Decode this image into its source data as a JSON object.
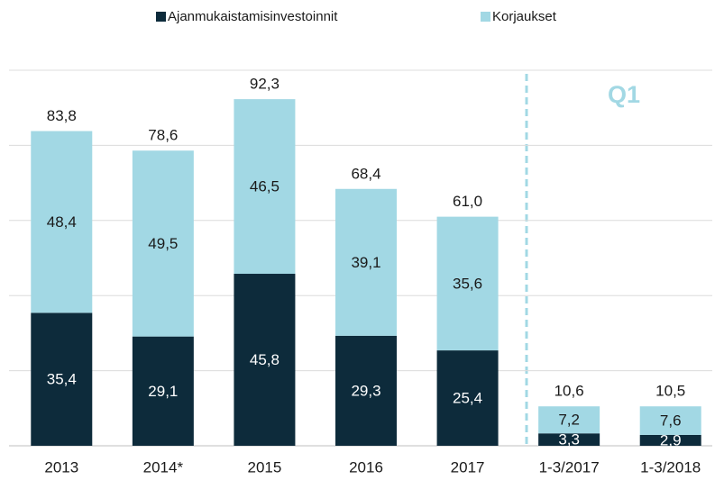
{
  "chart_data": {
    "type": "stacked_bar",
    "categories": [
      "2013",
      "2014*",
      "2015",
      "2016",
      "2017",
      "1-3/2017",
      "1-3/2018"
    ],
    "series": [
      {
        "name": "Ajanmukaistamisinvestoinnit",
        "color": "#0d2b3b",
        "label_color": "#ffffff",
        "values": [
          35.4,
          29.1,
          45.8,
          29.3,
          25.4,
          3.3,
          2.9
        ],
        "value_labels": [
          "35,4",
          "29,1",
          "45,8",
          "29,3",
          "25,4",
          "3,3",
          "2,9"
        ]
      },
      {
        "name": "Korjaukset",
        "color": "#a2d8e4",
        "label_color": "#1a1a1a",
        "values": [
          48.4,
          49.5,
          46.5,
          39.1,
          35.6,
          7.2,
          7.6
        ],
        "value_labels": [
          "48,4",
          "49,5",
          "46,5",
          "39,1",
          "35,6",
          "7,2",
          "7,6"
        ]
      }
    ],
    "totals": [
      83.8,
      78.6,
      92.3,
      68.4,
      61.0,
      10.6,
      10.5
    ],
    "total_labels": [
      "83,8",
      "78,6",
      "92,3",
      "68,4",
      "61,0",
      "10,6",
      "10,5"
    ],
    "annotation": "Q1",
    "ylim": [
      0,
      100
    ],
    "yticks": [
      0,
      20,
      40,
      60,
      80,
      100
    ],
    "grid": true,
    "legend": "top"
  }
}
